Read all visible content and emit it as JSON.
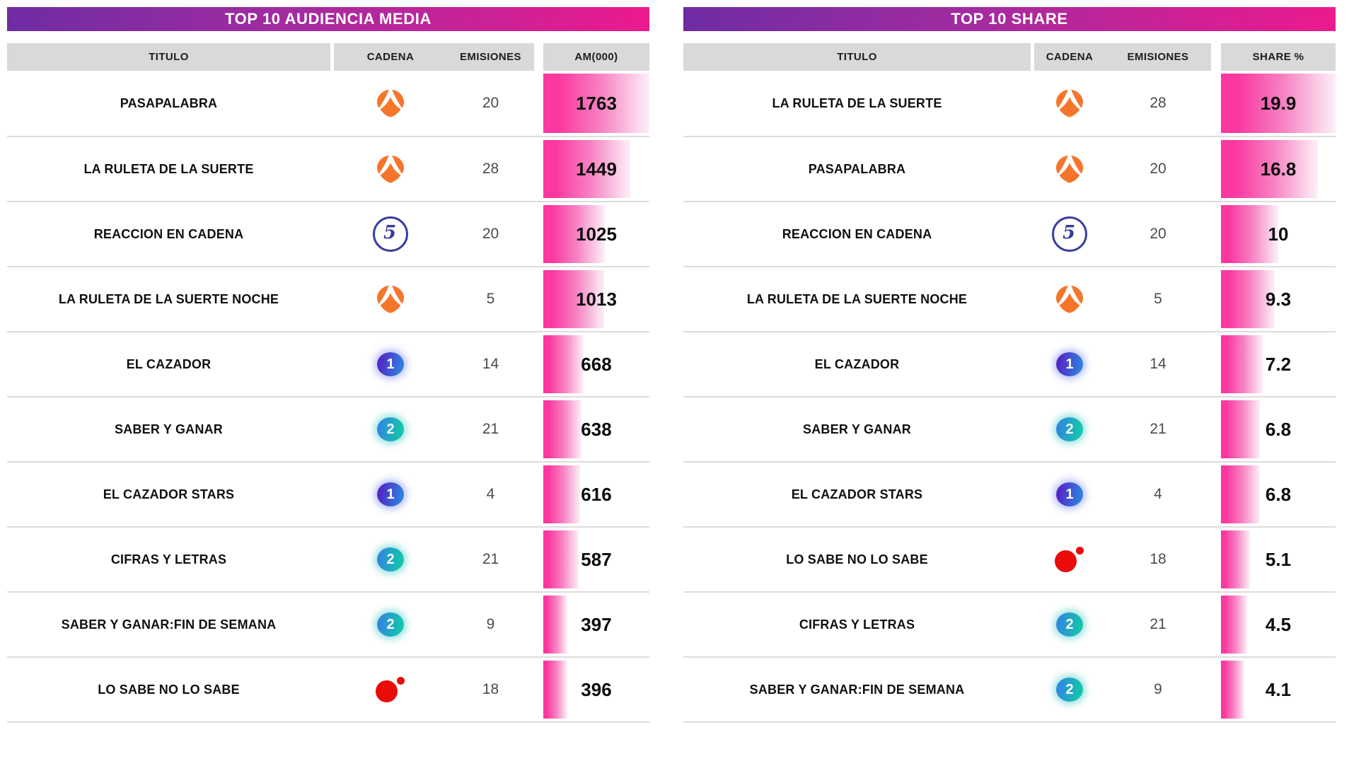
{
  "colors": {
    "banner_gradient_start": "#6E2CA3",
    "banner_gradient_mid": "#A42BA0",
    "banner_gradient_end": "#EC1A8D",
    "bar_pink": "#FB37A0",
    "bar_pink_light": "#FDEFF8",
    "column_header_bg": "#D9D9D9",
    "row_line": "#DCDCDC",
    "antena3_orange": "#F5762B",
    "telecinco_blue": "#3A3E9D",
    "la1_purple": "#5329C6",
    "la1_blue": "#2F7DDD",
    "la2_blue": "#2F8ADD",
    "la2_teal": "#14C5AB",
    "red_channel": "#EA0B0B"
  },
  "chart_data": [
    {
      "type": "table",
      "title": "TOP 10 AUDIENCIA MEDIA",
      "columns": [
        "TITULO",
        "CADENA",
        "EMISIONES",
        "AM(000)"
      ],
      "bar_column": "AM(000)",
      "bar_max": 1763,
      "rows": [
        {
          "titulo": "PASAPALABRA",
          "cadena": "antena3",
          "emisiones": "20",
          "valor": "1763"
        },
        {
          "titulo": "LA RULETA DE LA SUERTE",
          "cadena": "antena3",
          "emisiones": "28",
          "valor": "1449"
        },
        {
          "titulo": "REACCION EN CADENA",
          "cadena": "telecinco",
          "emisiones": "20",
          "valor": "1025"
        },
        {
          "titulo": "LA RULETA DE LA SUERTE NOCHE",
          "cadena": "antena3",
          "emisiones": "5",
          "valor": "1013"
        },
        {
          "titulo": "EL CAZADOR",
          "cadena": "la1",
          "emisiones": "14",
          "valor": "668"
        },
        {
          "titulo": "SABER Y GANAR",
          "cadena": "la2",
          "emisiones": "21",
          "valor": "638"
        },
        {
          "titulo": "EL CAZADOR STARS",
          "cadena": "la1",
          "emisiones": "4",
          "valor": "616"
        },
        {
          "titulo": "CIFRAS Y LETRAS",
          "cadena": "la2",
          "emisiones": "21",
          "valor": "587"
        },
        {
          "titulo": "SABER Y GANAR:FIN DE SEMANA",
          "cadena": "la2",
          "emisiones": "9",
          "valor": "397"
        },
        {
          "titulo": "LO SABE NO LO SABE",
          "cadena": "reddot",
          "emisiones": "18",
          "valor": "396"
        }
      ]
    },
    {
      "type": "table",
      "title": "TOP 10 SHARE",
      "columns": [
        "TITULO",
        "CADENA",
        "EMISIONES",
        "SHARE %"
      ],
      "bar_column": "SHARE %",
      "bar_max": 19.9,
      "rows": [
        {
          "titulo": "LA RULETA DE LA SUERTE",
          "cadena": "antena3",
          "emisiones": "28",
          "valor": "19.9"
        },
        {
          "titulo": "PASAPALABRA",
          "cadena": "antena3",
          "emisiones": "20",
          "valor": "16.8"
        },
        {
          "titulo": "REACCION EN CADENA",
          "cadena": "telecinco",
          "emisiones": "20",
          "valor": "10"
        },
        {
          "titulo": "LA RULETA DE LA SUERTE NOCHE",
          "cadena": "antena3",
          "emisiones": "5",
          "valor": "9.3"
        },
        {
          "titulo": "EL CAZADOR",
          "cadena": "la1",
          "emisiones": "14",
          "valor": "7.2"
        },
        {
          "titulo": "SABER Y GANAR",
          "cadena": "la2",
          "emisiones": "21",
          "valor": "6.8"
        },
        {
          "titulo": "EL CAZADOR STARS",
          "cadena": "la1",
          "emisiones": "4",
          "valor": "6.8"
        },
        {
          "titulo": "LO SABE NO LO SABE",
          "cadena": "reddot",
          "emisiones": "18",
          "valor": "5.1"
        },
        {
          "titulo": "CIFRAS Y LETRAS",
          "cadena": "la2",
          "emisiones": "21",
          "valor": "4.5"
        },
        {
          "titulo": "SABER Y GANAR:FIN DE SEMANA",
          "cadena": "la2",
          "emisiones": "9",
          "valor": "4.1"
        }
      ]
    }
  ]
}
